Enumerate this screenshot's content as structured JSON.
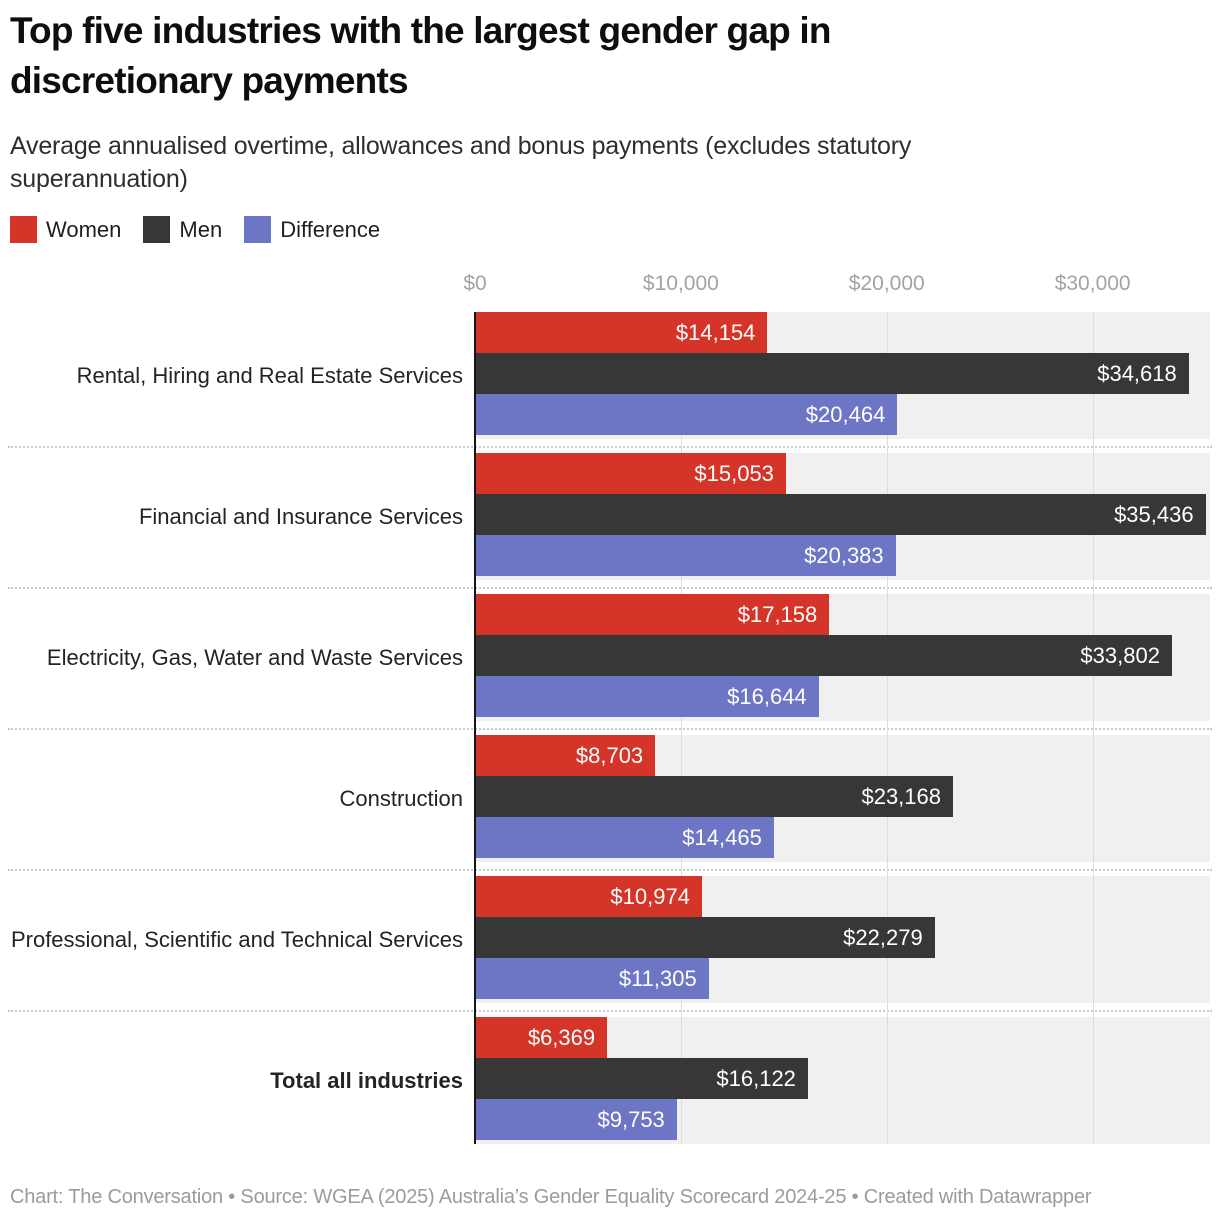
{
  "header": {
    "title": "Top five industries with the largest gender gap in discretionary payments",
    "subtitle": "Average annualised overtime, allowances and bonus payments (excludes statutory superannuation)"
  },
  "chart_data": {
    "type": "bar",
    "orientation": "horizontal",
    "title": "Top five industries with the largest gender gap in discretionary payments",
    "subtitle": "Average annualised overtime, allowances and bonus payments (excludes statutory superannuation)",
    "legend_position": "top",
    "grid": true,
    "categories": [
      "Rental, Hiring and Real Estate Services",
      "Financial and Insurance Services",
      "Electricity, Gas, Water and Waste Services",
      "Construction",
      "Professional, Scientific and Technical Services",
      "Total all industries"
    ],
    "emphasized_category": "Total all industries",
    "series": [
      {
        "name": "Women",
        "color": "#d53529",
        "values": [
          14154,
          15053,
          17158,
          8703,
          10974,
          6369
        ],
        "labels": [
          "$14,154",
          "$15,053",
          "$17,158",
          "$8,703",
          "$10,974",
          "$6,369"
        ]
      },
      {
        "name": "Men",
        "color": "#373737",
        "values": [
          34618,
          35436,
          33802,
          23168,
          22279,
          16122
        ],
        "labels": [
          "$34,618",
          "$35,436",
          "$33,802",
          "$23,168",
          "$22,279",
          "$16,122"
        ]
      },
      {
        "name": "Difference",
        "color": "#6d76c5",
        "values": [
          20464,
          20383,
          16644,
          14465,
          11305,
          9753
        ],
        "labels": [
          "$20,464",
          "$20,383",
          "$16,644",
          "$14,465",
          "$11,305",
          "$9,753"
        ]
      }
    ],
    "x_ticks": [
      "$0",
      "$10,000",
      "$20,000",
      "$30,000"
    ],
    "x_tick_values": [
      0,
      10000,
      20000,
      30000
    ],
    "xlim": [
      0,
      35650
    ]
  },
  "footer": {
    "text": "Chart: The Conversation • Source: WGEA (2025) Australia’s Gender Equality Scorecard 2024-25 • Created with Datawrapper"
  }
}
